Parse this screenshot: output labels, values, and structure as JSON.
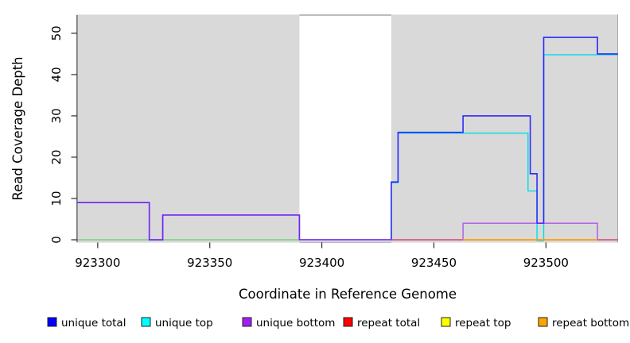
{
  "chart_data": {
    "type": "line",
    "subtype": "step-coverage",
    "title": "",
    "xlabel": "Coordinate in Reference Genome",
    "ylabel": "Read Coverage Depth",
    "xlim": [
      923291,
      923532
    ],
    "ylim": [
      0,
      54.4
    ],
    "x_ticks": [
      923300,
      923350,
      923400,
      923450,
      923500
    ],
    "y_ticks": [
      0,
      10,
      20,
      30,
      40,
      50
    ],
    "grid": false,
    "plot_background": "#ffffff",
    "shaded_region_color": "#d9d9d9",
    "box_color": "#7a7a7a",
    "axis_color": "#2e2e2e",
    "shaded_regions": [
      {
        "from": 923291,
        "to": 923390
      },
      {
        "from": 923431,
        "to": 923532
      }
    ],
    "gap_region": {
      "from": 923390,
      "to": 923431
    },
    "series": [
      {
        "key": "green_baseline",
        "name": "unlabeled green baseline",
        "color": "#00cd00",
        "opacity": 0.55,
        "width": 1.3,
        "dy": 0,
        "points": [
          [
            923291,
            0
          ],
          [
            923390,
            0
          ]
        ]
      },
      {
        "key": "unique_top",
        "name": "unique top",
        "color": "#00dce8",
        "opacity": 1,
        "width": 1.4,
        "dy": 1,
        "points": [
          [
            923431,
            0
          ],
          [
            923431,
            14
          ],
          [
            923434,
            14
          ],
          [
            923434,
            26
          ],
          [
            923492,
            26
          ],
          [
            923492,
            12
          ],
          [
            923496,
            12
          ],
          [
            923496,
            0
          ],
          [
            923499,
            0
          ],
          [
            923499,
            45
          ],
          [
            923532,
            45
          ]
        ]
      },
      {
        "key": "unique_total",
        "name": "unique total",
        "color": "#2a2aff",
        "opacity": 1,
        "width": 1.6,
        "dy": 0,
        "points": [
          [
            923291,
            9
          ],
          [
            923323,
            9
          ],
          [
            923323,
            0
          ],
          [
            923329,
            0
          ],
          [
            923329,
            6
          ],
          [
            923390,
            6
          ],
          [
            923390,
            0
          ],
          [
            923431,
            0
          ],
          [
            923431,
            14
          ],
          [
            923434,
            14
          ],
          [
            923434,
            26
          ],
          [
            923463,
            26
          ],
          [
            923463,
            30
          ],
          [
            923493,
            30
          ],
          [
            923493,
            16
          ],
          [
            923496,
            16
          ],
          [
            923496,
            4
          ],
          [
            923499,
            4
          ],
          [
            923499,
            49
          ],
          [
            923523,
            49
          ],
          [
            923523,
            45
          ],
          [
            923532,
            45
          ]
        ]
      },
      {
        "key": "unique_bottom",
        "name": "unique bottom",
        "color": "#a020f0",
        "opacity": 0.62,
        "width": 1.6,
        "dy": 0,
        "points": [
          [
            923291,
            9
          ],
          [
            923323,
            9
          ],
          [
            923323,
            0
          ],
          [
            923329,
            0
          ],
          [
            923329,
            6
          ],
          [
            923390,
            6
          ],
          [
            923390,
            0
          ],
          [
            923463,
            0
          ],
          [
            923463,
            4
          ],
          [
            923523,
            4
          ],
          [
            923523,
            0
          ],
          [
            923532,
            0
          ]
        ]
      },
      {
        "key": "repeat_total",
        "name": "repeat total",
        "color": "#dc4864",
        "opacity": 1,
        "width": 1.3,
        "dy": 0,
        "points": [
          [
            923431,
            0
          ],
          [
            923532,
            0
          ]
        ]
      },
      {
        "key": "repeat_top",
        "name": "repeat top",
        "color": "#ffff00",
        "opacity": 1,
        "width": 1.3,
        "dy": 0,
        "points": [
          [
            923463,
            0
          ],
          [
            923523,
            0
          ]
        ]
      },
      {
        "key": "repeat_bottom",
        "name": "repeat bottom",
        "color": "#ff9800",
        "opacity": 1,
        "width": 1.5,
        "dy": 0,
        "points": [
          [
            923463,
            0
          ],
          [
            923523,
            0
          ]
        ]
      }
    ]
  },
  "legend": {
    "items": [
      {
        "key": "unique_total",
        "label": "unique total",
        "color": "#0000ff"
      },
      {
        "key": "unique_top",
        "label": "unique top",
        "color": "#00ffff"
      },
      {
        "key": "unique_bottom",
        "label": "unique bottom",
        "color": "#a020f0"
      },
      {
        "key": "repeat_total",
        "label": "repeat total",
        "color": "#ff0000"
      },
      {
        "key": "repeat_top",
        "label": "repeat top",
        "color": "#ffff00"
      },
      {
        "key": "repeat_bottom",
        "label": "repeat bottom",
        "color": "#ffa500"
      }
    ]
  }
}
